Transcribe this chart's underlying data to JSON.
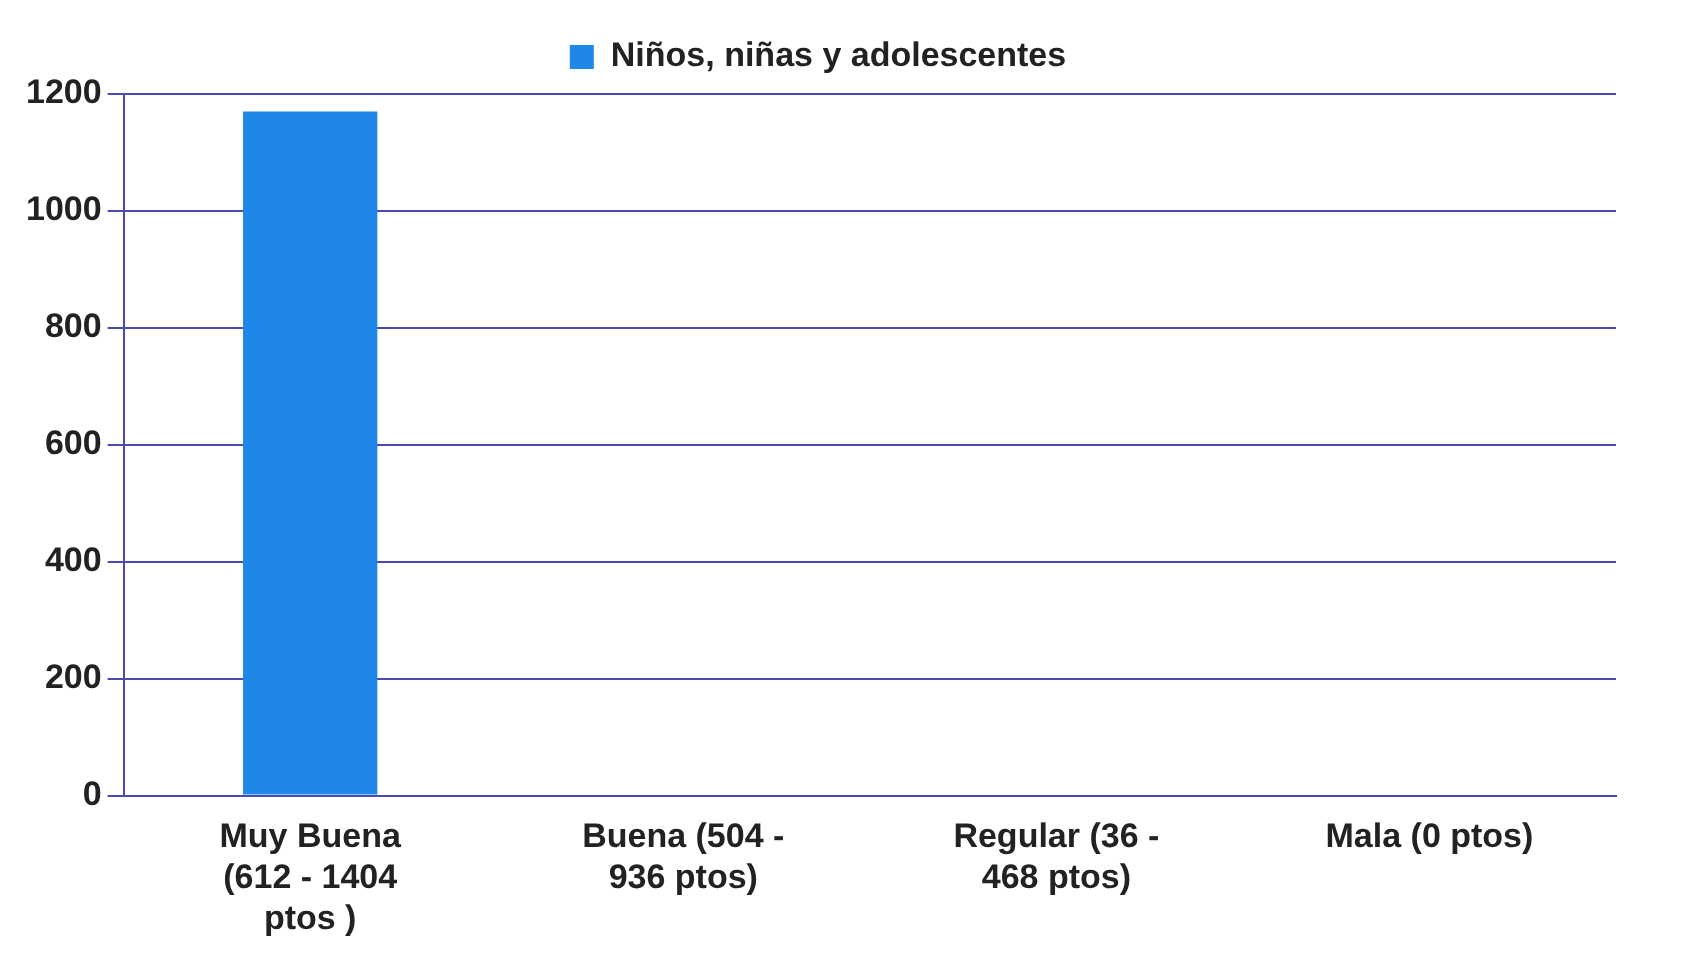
{
  "chart_data": {
    "type": "bar",
    "categories": [
      "Muy Buena (612 - 1404 ptos )",
      "Buena (504 - 936 ptos)",
      "Regular (36 - 468 ptos)",
      "Mala (0 ptos)"
    ],
    "series": [
      {
        "name": "Niños, niñas y adolescentes",
        "color": "#1f87e8",
        "values": [
          1170,
          0,
          0,
          0
        ]
      }
    ],
    "ylim": [
      0,
      1200
    ],
    "yticks": [
      0,
      200,
      400,
      600,
      800,
      1000,
      1200
    ],
    "grid": "y",
    "legend": "top"
  }
}
